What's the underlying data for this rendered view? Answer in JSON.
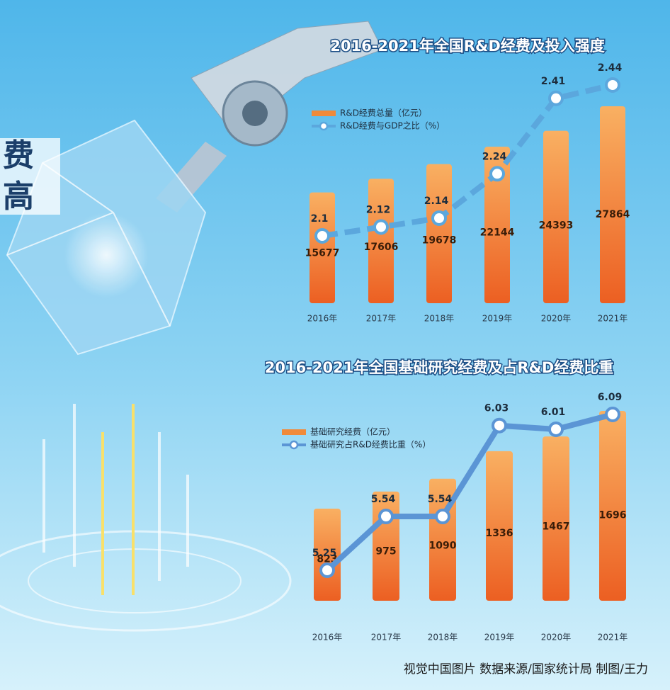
{
  "headline_fragments": [
    "费",
    "高"
  ],
  "footer": "视觉中国图片 数据来源/国家统计局 制图/王力",
  "chart_data": [
    {
      "type": "combo",
      "title": "2016-2021年全国R&D经费及投入强度",
      "categories": [
        "2016年",
        "2017年",
        "2018年",
        "2019年",
        "2020年",
        "2021年"
      ],
      "series": [
        {
          "name": "R&D经费总量（亿元）",
          "type": "bar",
          "color": "#f08a3a",
          "values": [
            15677,
            17606,
            19678,
            22144,
            24393,
            27864
          ]
        },
        {
          "name": "R&D经费与GDP之比（%）",
          "type": "line",
          "color": "#5ba7dd",
          "dashed": true,
          "values": [
            2.1,
            2.12,
            2.14,
            2.24,
            2.41,
            2.44
          ]
        }
      ]
    },
    {
      "type": "combo",
      "title": "2016-2021年全国基础研究经费及占R&D经费比重",
      "categories": [
        "2016年",
        "2017年",
        "2018年",
        "2019年",
        "2020年",
        "2021年"
      ],
      "series": [
        {
          "name": "基础研究经费（亿元）",
          "type": "bar",
          "color": "#f08a3a",
          "values": [
            823,
            975,
            1090,
            1336,
            1467,
            1696
          ]
        },
        {
          "name": "基础研究占R&D经费比重（%）",
          "type": "line",
          "color": "#5b95d5",
          "dashed": false,
          "values": [
            5.25,
            5.54,
            5.54,
            6.03,
            6.01,
            6.09
          ]
        }
      ]
    }
  ]
}
